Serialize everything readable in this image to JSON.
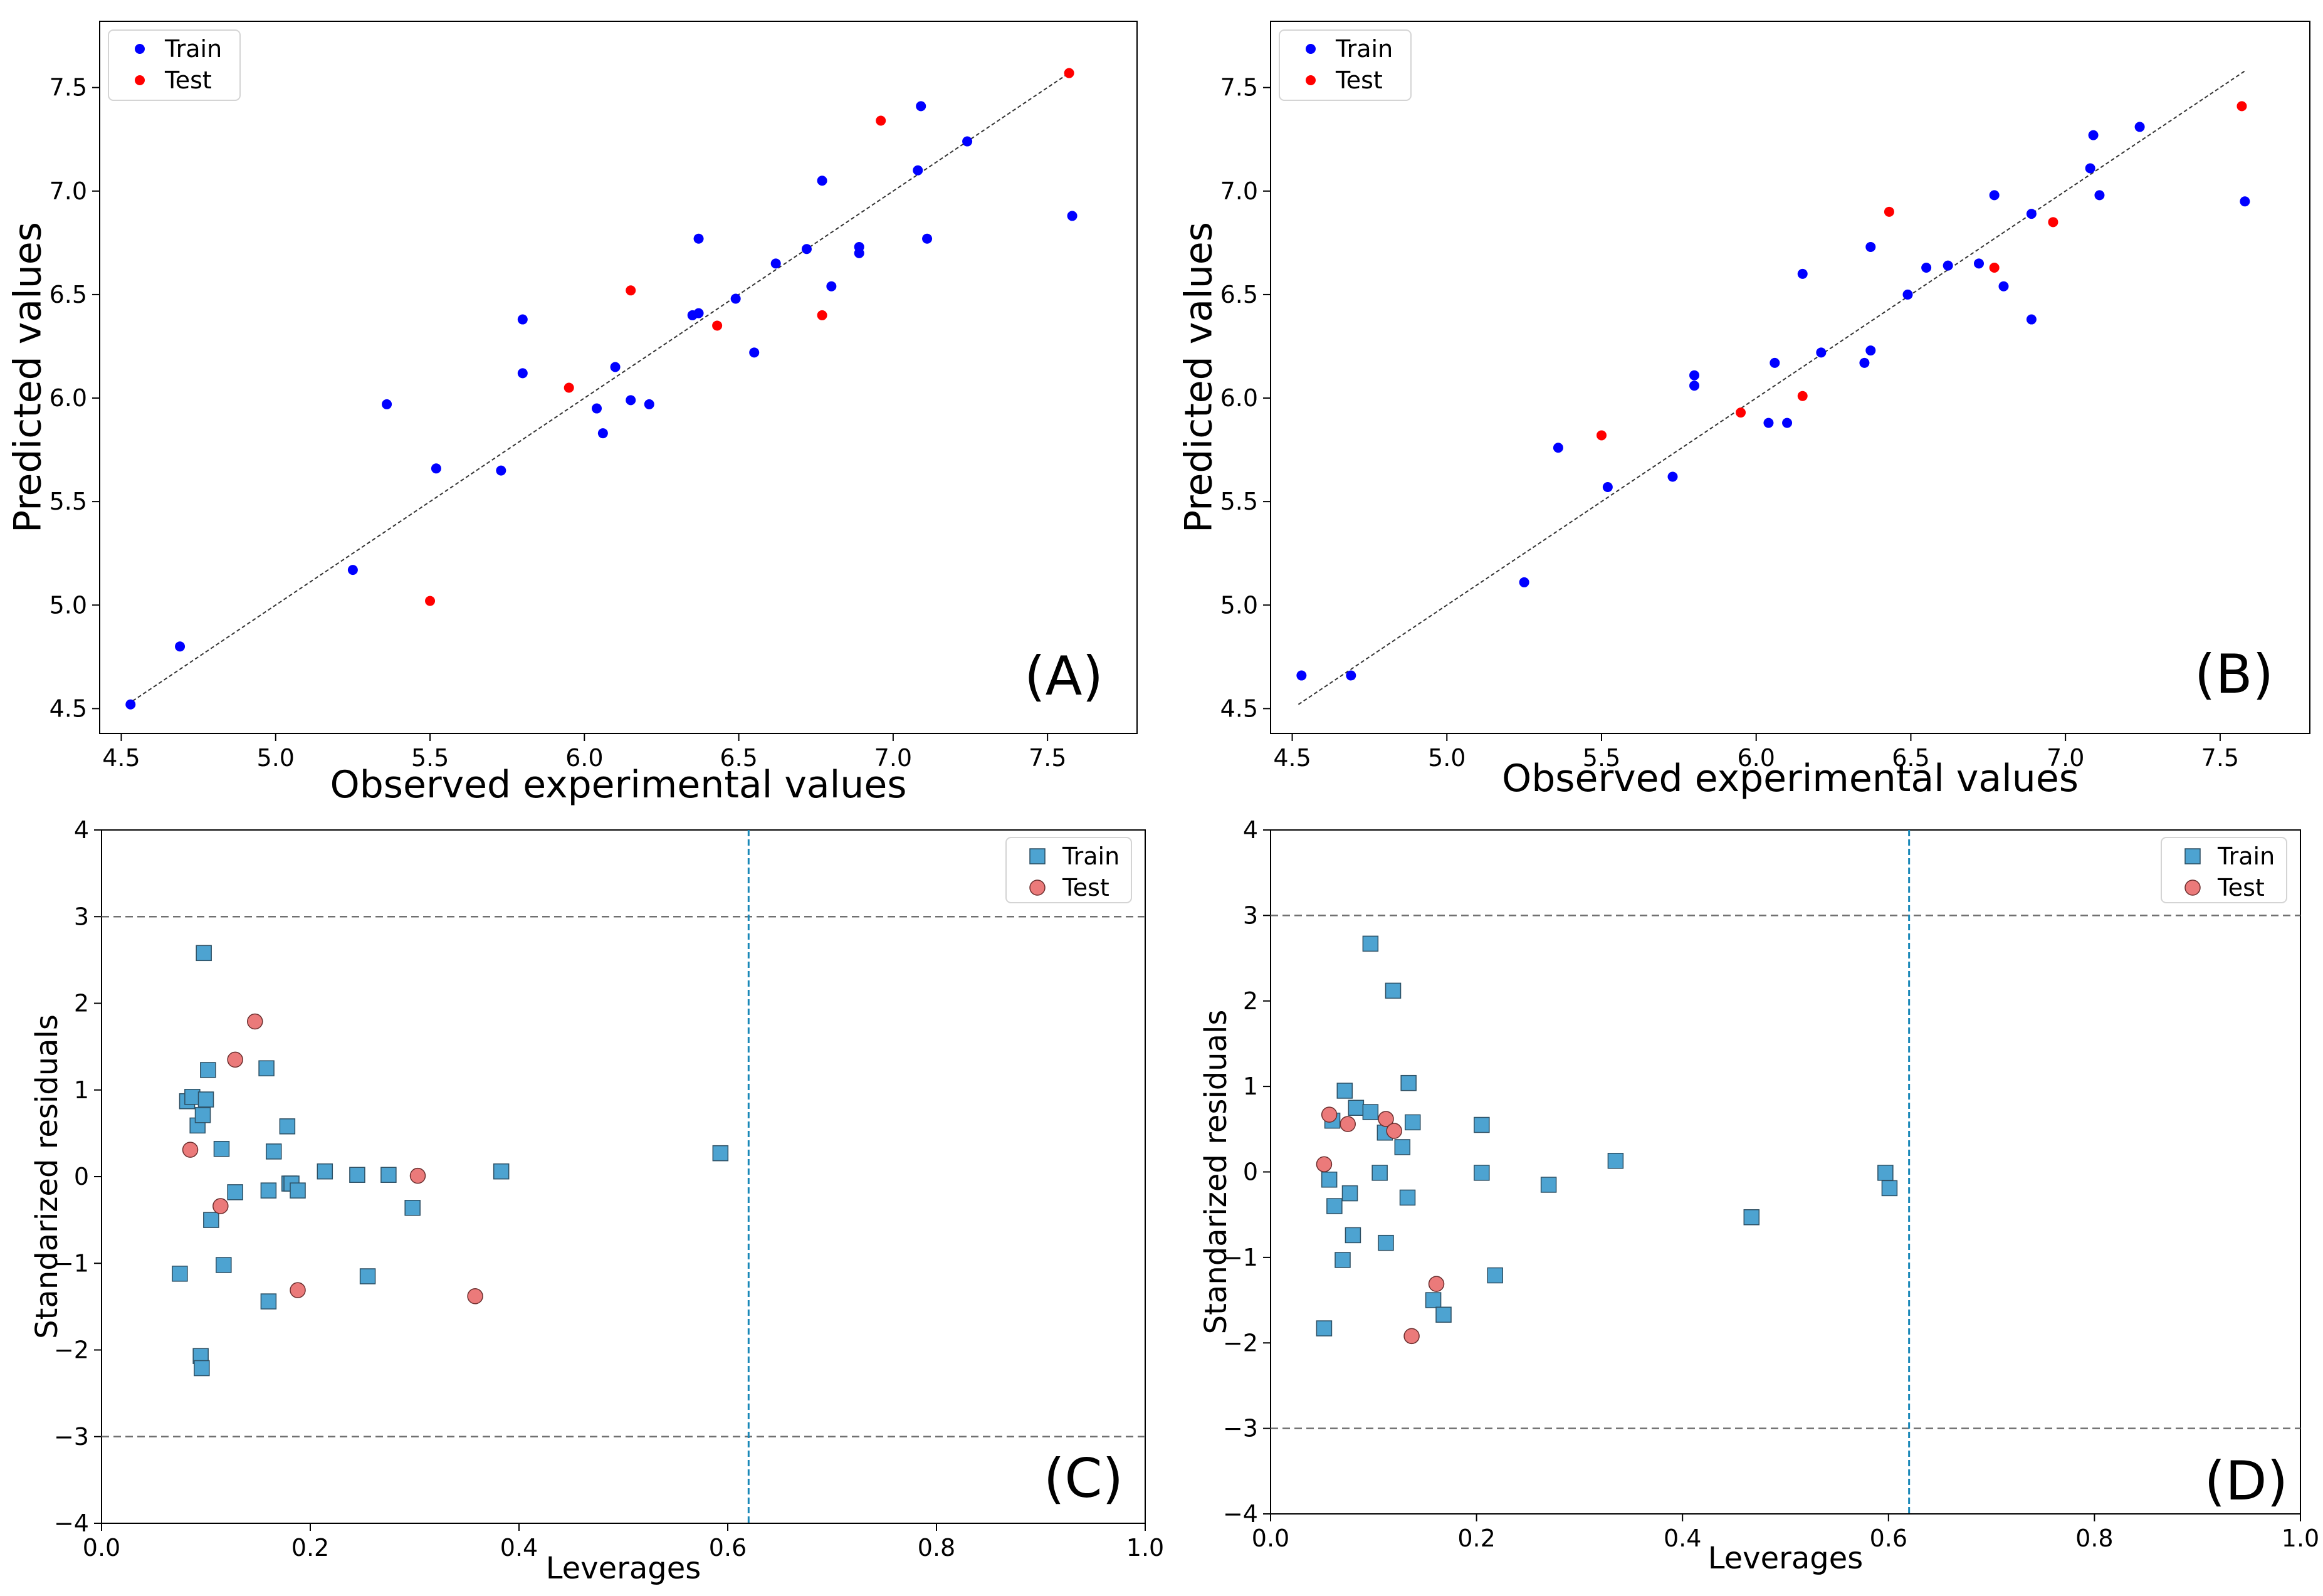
{
  "colors": {
    "train": "#0000ff",
    "test": "#ff0000",
    "train_marker": "#4da3d1",
    "test_marker": "#eb7a7a",
    "threshold": "#1a88b8",
    "limit": "#707070"
  },
  "chart_data": [
    {
      "type": "scatter",
      "panel": "(A)",
      "xlabel": "Observed experimental values",
      "ylabel": "Predicted values",
      "xlim": [
        4.43,
        7.79
      ],
      "ylim": [
        4.38,
        7.82
      ],
      "xticks": [
        "4.5",
        "5.0",
        "5.5",
        "6.0",
        "6.5",
        "7.0",
        "7.5"
      ],
      "yticks": [
        "4.5",
        "5.0",
        "5.5",
        "6.0",
        "6.5",
        "7.0",
        "7.5"
      ],
      "legend": [
        "Train",
        "Test"
      ],
      "legend_loc": "upper-left",
      "identity_line": [
        4.52,
        7.58
      ],
      "series": [
        {
          "name": "Train",
          "x": [
            4.53,
            4.69,
            5.25,
            5.36,
            5.52,
            5.73,
            5.8,
            5.8,
            6.04,
            6.06,
            6.1,
            6.15,
            6.21,
            6.35,
            6.37,
            6.37,
            6.49,
            6.55,
            6.62,
            6.72,
            6.77,
            6.8,
            6.89,
            6.89,
            7.08,
            7.09,
            7.11,
            7.24,
            7.58
          ],
          "y": [
            4.52,
            4.8,
            5.17,
            5.97,
            5.66,
            5.65,
            6.12,
            6.38,
            5.95,
            5.83,
            6.15,
            5.99,
            5.97,
            6.4,
            6.77,
            6.41,
            6.48,
            6.22,
            6.65,
            6.72,
            7.05,
            6.54,
            6.7,
            6.73,
            7.1,
            7.41,
            6.77,
            7.24,
            6.88
          ]
        },
        {
          "name": "Test",
          "x": [
            5.5,
            5.95,
            6.15,
            6.43,
            6.77,
            6.96,
            7.57
          ],
          "y": [
            5.02,
            6.05,
            6.52,
            6.35,
            6.4,
            7.34,
            7.57
          ]
        }
      ]
    },
    {
      "type": "scatter",
      "panel": "(B)",
      "xlabel": "Observed experimental values",
      "ylabel": "Predicted values",
      "xlim": [
        4.43,
        7.79
      ],
      "ylim": [
        4.38,
        7.82
      ],
      "xticks": [
        "4.5",
        "5.0",
        "5.5",
        "6.0",
        "6.5",
        "7.0",
        "7.5"
      ],
      "yticks": [
        "4.5",
        "5.0",
        "5.5",
        "6.0",
        "6.5",
        "7.0",
        "7.5"
      ],
      "legend": [
        "Train",
        "Test"
      ],
      "legend_loc": "upper-left",
      "identity_line": [
        4.52,
        7.58
      ],
      "series": [
        {
          "name": "Train",
          "x": [
            4.53,
            4.69,
            5.25,
            5.36,
            5.52,
            5.73,
            5.8,
            5.8,
            6.04,
            6.06,
            6.1,
            6.15,
            6.21,
            6.35,
            6.37,
            6.37,
            6.49,
            6.55,
            6.62,
            6.72,
            6.77,
            6.8,
            6.89,
            6.89,
            7.08,
            7.09,
            7.11,
            7.24,
            7.58
          ],
          "y": [
            4.66,
            4.66,
            5.11,
            5.76,
            5.57,
            5.62,
            6.06,
            6.11,
            5.88,
            6.17,
            5.88,
            6.6,
            6.22,
            6.17,
            6.73,
            6.23,
            6.5,
            6.63,
            6.64,
            6.65,
            6.98,
            6.54,
            6.38,
            6.89,
            7.11,
            7.27,
            6.98,
            7.31,
            6.95
          ]
        },
        {
          "name": "Test",
          "x": [
            5.5,
            5.95,
            6.15,
            6.43,
            6.77,
            6.96,
            7.57
          ],
          "y": [
            5.82,
            5.93,
            6.01,
            6.9,
            6.63,
            6.85,
            7.41
          ]
        }
      ]
    },
    {
      "type": "scatter",
      "panel": "(C)",
      "xlabel": "Leverages",
      "ylabel": "Standarized residuals",
      "xlim": [
        0.0,
        1.0
      ],
      "ylim": [
        -4,
        4
      ],
      "xticks": [
        "0.0",
        "0.2",
        "0.4",
        "0.6",
        "0.8",
        "1.0"
      ],
      "yticks": [
        "4",
        "3",
        "2",
        "1",
        "0",
        "−1",
        "−2",
        "−3",
        "−4"
      ],
      "legend": [
        "Train",
        "Test"
      ],
      "legend_loc": "upper-right",
      "h_limits": [
        3,
        -3
      ],
      "leverage_threshold": 0.62,
      "series": [
        {
          "name": "Train",
          "x": [
            0.075,
            0.082,
            0.087,
            0.092,
            0.095,
            0.097,
            0.098,
            0.1,
            0.102,
            0.105,
            0.115,
            0.117,
            0.128,
            0.158,
            0.16,
            0.16,
            0.165,
            0.178,
            0.18,
            0.182,
            0.188,
            0.214,
            0.245,
            0.255,
            0.275,
            0.298,
            0.383,
            0.593,
            0.096
          ],
          "y": [
            -1.12,
            0.87,
            0.92,
            0.59,
            -2.07,
            0.71,
            2.58,
            0.89,
            1.23,
            -0.5,
            0.32,
            -1.02,
            -0.18,
            1.25,
            -1.44,
            -0.16,
            0.29,
            0.58,
            -0.08,
            -0.08,
            -0.16,
            0.06,
            0.02,
            -1.15,
            0.02,
            -0.36,
            0.06,
            0.27,
            -2.21
          ]
        },
        {
          "name": "Test",
          "x": [
            0.085,
            0.114,
            0.128,
            0.147,
            0.188,
            0.303,
            0.358
          ],
          "y": [
            0.31,
            -0.34,
            1.35,
            1.79,
            -1.31,
            0.01,
            -1.38
          ]
        }
      ]
    },
    {
      "type": "scatter",
      "panel": "(D)",
      "xlabel": "Leverages",
      "ylabel": "Standarized residuals",
      "xlim": [
        0.0,
        1.0
      ],
      "ylim": [
        -4,
        4
      ],
      "xticks": [
        "0.0",
        "0.2",
        "0.4",
        "0.6",
        "0.8",
        "1.0"
      ],
      "yticks": [
        "4",
        "3",
        "2",
        "1",
        "0",
        "−1",
        "−2",
        "−3",
        "−4"
      ],
      "legend": [
        "Train",
        "Test"
      ],
      "legend_loc": "upper-right",
      "h_limits": [
        3,
        -3
      ],
      "leverage_threshold": 0.62,
      "series": [
        {
          "name": "Train",
          "x": [
            0.052,
            0.057,
            0.06,
            0.062,
            0.07,
            0.072,
            0.077,
            0.08,
            0.083,
            0.097,
            0.097,
            0.106,
            0.111,
            0.112,
            0.119,
            0.128,
            0.133,
            0.134,
            0.138,
            0.158,
            0.168,
            0.205,
            0.205,
            0.218,
            0.27,
            0.335,
            0.467,
            0.597,
            0.601
          ],
          "y": [
            -1.83,
            -0.09,
            0.6,
            -0.4,
            -1.03,
            0.95,
            -0.25,
            -0.74,
            0.75,
            2.67,
            0.7,
            -0.01,
            0.46,
            -0.83,
            2.12,
            0.29,
            -0.3,
            1.04,
            0.58,
            -1.5,
            -1.67,
            0.55,
            -0.01,
            -1.21,
            -0.15,
            0.13,
            -0.53,
            -0.01,
            -0.19
          ]
        },
        {
          "name": "Test",
          "x": [
            0.052,
            0.057,
            0.075,
            0.112,
            0.12,
            0.137,
            0.161
          ],
          "y": [
            0.09,
            0.67,
            0.56,
            0.62,
            0.48,
            -1.92,
            -1.31
          ]
        }
      ]
    }
  ]
}
